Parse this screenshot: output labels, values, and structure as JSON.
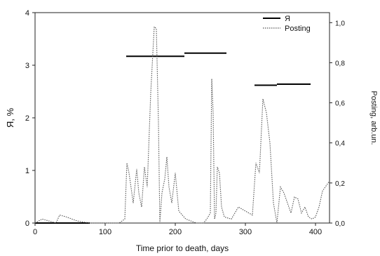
{
  "chart_data": {
    "type": "line",
    "xlabel": "Time prior to death, days",
    "ylabel_left": "Я, %",
    "ylabel_right": "Posting, arb.un.",
    "xlim": [
      0,
      420
    ],
    "ylim_left": [
      0,
      4
    ],
    "ylim_right": [
      0,
      1.05
    ],
    "x_ticks": [
      "0",
      "100",
      "200",
      "300",
      "400"
    ],
    "y_left_ticks": [
      "0",
      "1",
      "2",
      "3",
      "4"
    ],
    "y_right_ticks": [
      "0,0",
      "0,2",
      "0,4",
      "0,6",
      "0,8",
      "1,0"
    ],
    "legend_position": "top-right",
    "grid": false,
    "series": [
      {
        "name": "Я",
        "style": "solid",
        "axis": "left",
        "color": "#000000",
        "segments": [
          {
            "x": [
              0,
              78
            ],
            "y": 0
          },
          {
            "x": [
              130,
              213
            ],
            "y": 3.17
          },
          {
            "x": [
              213,
              273
            ],
            "y": 3.23
          },
          {
            "x": [
              313,
              345
            ],
            "y": 2.62
          },
          {
            "x": [
              345,
              393
            ],
            "y": 2.64
          }
        ]
      },
      {
        "name": "Posting",
        "style": "dotted",
        "axis": "right",
        "color": "#555555",
        "x": [
          0,
          10,
          20,
          30,
          35,
          45,
          60,
          78,
          100,
          110,
          120,
          128,
          131,
          134,
          140,
          145,
          148,
          152,
          156,
          160,
          165,
          170,
          173,
          176,
          178,
          181,
          185,
          188,
          191,
          195,
          200,
          205,
          215,
          230,
          240,
          245,
          250,
          252,
          254,
          256,
          258,
          260,
          263,
          266,
          270,
          280,
          290,
          300,
          310,
          315,
          320,
          325,
          330,
          335,
          340,
          345,
          350,
          355,
          360,
          365,
          370,
          375,
          380,
          385,
          390,
          395,
          400,
          405,
          410,
          420
        ],
        "y": [
          0.0,
          0.02,
          0.01,
          0.0,
          0.04,
          0.03,
          0.01,
          0.0,
          0.0,
          0.0,
          0.0,
          0.02,
          0.3,
          0.25,
          0.1,
          0.27,
          0.15,
          0.08,
          0.28,
          0.18,
          0.65,
          0.98,
          0.97,
          0.5,
          0.0,
          0.15,
          0.22,
          0.33,
          0.18,
          0.1,
          0.25,
          0.06,
          0.02,
          0.0,
          0.0,
          0.02,
          0.05,
          0.72,
          0.55,
          0.02,
          0.05,
          0.28,
          0.25,
          0.08,
          0.03,
          0.02,
          0.08,
          0.06,
          0.04,
          0.3,
          0.25,
          0.62,
          0.55,
          0.4,
          0.1,
          0.0,
          0.18,
          0.15,
          0.1,
          0.05,
          0.13,
          0.12,
          0.05,
          0.08,
          0.03,
          0.02,
          0.03,
          0.08,
          0.16,
          0.21
        ]
      }
    ]
  }
}
